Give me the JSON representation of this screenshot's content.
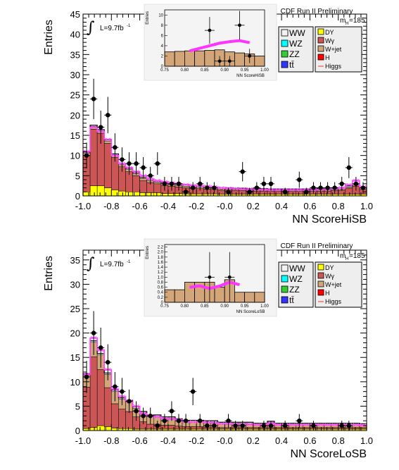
{
  "chart_data": [
    {
      "type": "bar",
      "xlabel": "NN ScoreHiSB",
      "ylabel": "Entries",
      "xlim": [
        -1.0,
        1.0
      ],
      "ylim": [
        0,
        45
      ],
      "xticks": [
        "-1.0",
        "-0.8",
        "-0.6",
        "-0.4",
        "-0.2",
        "-0.0",
        "0.2",
        "0.4",
        "0.6",
        "0.8",
        "1.0"
      ],
      "yticks": [
        "0",
        "5",
        "10",
        "15",
        "20",
        "25",
        "30",
        "35",
        "40",
        "45"
      ],
      "header": "CDF Run II Preliminary",
      "mass_label": "m",
      "mass_sub": "H",
      "mass_value": "=185",
      "lumi_label": "L=9.7fb",
      "lumi_sup": "-1",
      "integral_symbol": "∫",
      "legend": [
        {
          "name": "WW",
          "color": "#f2f2f2"
        },
        {
          "name": "WZ",
          "color": "#00ffff"
        },
        {
          "name": "ZZ",
          "color": "#33cc33"
        },
        {
          "name": "tt̄",
          "color": "#3333ff"
        },
        {
          "name": "DY",
          "color": "#ffff00"
        },
        {
          "name": "Wγ",
          "color": "#cc5555"
        },
        {
          "name": "W+jet",
          "color": "#d2a679"
        },
        {
          "name": "H",
          "color": "#ff0000"
        },
        {
          "name": "Higgs",
          "color": "#ff3333",
          "line": true
        }
      ],
      "bins": 40,
      "series": [
        {
          "name": "DY",
          "values": [
            1.0,
            2.5,
            2.5,
            2.0,
            1.5,
            1.2,
            1.0,
            1.0,
            0.8,
            0.8,
            0.8,
            0.6,
            0.6,
            0.6,
            0.5,
            0.5,
            0.5,
            0.5,
            0.5,
            0.4,
            0.4,
            0.4,
            0.4,
            0.4,
            0.4,
            0.4,
            0.4,
            0.4,
            0.4,
            0.4,
            0.4,
            0.4,
            0.4,
            0.4,
            0.4,
            0.4,
            0.4,
            0.4,
            0.4,
            0.4
          ]
        },
        {
          "name": "Wγ",
          "values": [
            9.0,
            14.0,
            13.0,
            11.0,
            8.0,
            6.0,
            5.0,
            4.0,
            3.0,
            2.5,
            2.2,
            2.0,
            1.8,
            1.6,
            1.5,
            1.4,
            1.3,
            1.2,
            1.1,
            1.0,
            1.0,
            0.9,
            0.9,
            0.8,
            0.8,
            0.8,
            0.7,
            0.7,
            0.7,
            0.7,
            0.7,
            0.7,
            0.7,
            0.8,
            0.8,
            0.9,
            1.0,
            1.5,
            2.0,
            1.2
          ]
        },
        {
          "name": "W+jet",
          "values": [
            0.5,
            0.7,
            0.6,
            0.6,
            0.6,
            0.5,
            0.5,
            0.5,
            0.5,
            0.5,
            0.4,
            0.4,
            0.4,
            0.4,
            0.4,
            0.4,
            0.4,
            0.4,
            0.3,
            0.3,
            0.3,
            0.3,
            0.3,
            0.3,
            0.3,
            0.3,
            0.3,
            0.3,
            0.3,
            0.3,
            0.3,
            0.3,
            0.3,
            0.3,
            0.3,
            0.3,
            0.3,
            0.3,
            0.3,
            0.3
          ]
        },
        {
          "name": "WW",
          "values": [
            0.3,
            0.3,
            0.3,
            0.3,
            0.3,
            0.3,
            0.3,
            0.3,
            0.3,
            0.3,
            0.3,
            0.3,
            0.3,
            0.3,
            0.3,
            0.3,
            0.3,
            0.3,
            0.3,
            0.3,
            0.3,
            0.3,
            0.3,
            0.3,
            0.3,
            0.3,
            0.3,
            0.3,
            0.3,
            0.3,
            0.3,
            0.3,
            0.3,
            0.3,
            0.3,
            0.3,
            0.3,
            0.3,
            0.3,
            0.3
          ]
        }
      ],
      "higgs": [
        11.0,
        17.0,
        16.0,
        14.0,
        10.0,
        8.0,
        7.0,
        6.0,
        5.0,
        4.2,
        3.8,
        3.5,
        3.2,
        3.0,
        2.8,
        2.6,
        2.5,
        2.4,
        2.2,
        2.0,
        1.9,
        1.8,
        1.7,
        1.7,
        1.6,
        1.6,
        1.5,
        1.5,
        1.5,
        1.5,
        1.5,
        1.5,
        1.5,
        1.6,
        1.7,
        1.8,
        2.0,
        2.8,
        3.8,
        2.2
      ],
      "data_points": [
        {
          "x": -0.975,
          "y": 10,
          "err": 3.2
        },
        {
          "x": -0.925,
          "y": 24,
          "err": 5
        },
        {
          "x": -0.875,
          "y": 17,
          "err": 4.1
        },
        {
          "x": -0.825,
          "y": 20,
          "err": 4.5
        },
        {
          "x": -0.775,
          "y": 12,
          "err": 3.5
        },
        {
          "x": -0.725,
          "y": 9,
          "err": 3
        },
        {
          "x": -0.675,
          "y": 8,
          "err": 2.8
        },
        {
          "x": -0.625,
          "y": 8,
          "err": 2.8
        },
        {
          "x": -0.575,
          "y": 7,
          "err": 2.6
        },
        {
          "x": -0.525,
          "y": 5,
          "err": 2.2
        },
        {
          "x": -0.475,
          "y": 8,
          "err": 2.8
        },
        {
          "x": -0.425,
          "y": 3,
          "err": 1.7
        },
        {
          "x": -0.375,
          "y": 3,
          "err": 1.7
        },
        {
          "x": -0.325,
          "y": 3,
          "err": 1.7
        },
        {
          "x": -0.275,
          "y": 1,
          "err": 1
        },
        {
          "x": -0.225,
          "y": 2,
          "err": 1.4
        },
        {
          "x": -0.175,
          "y": 3,
          "err": 1.7
        },
        {
          "x": -0.125,
          "y": 2,
          "err": 1.4
        },
        {
          "x": -0.075,
          "y": 2,
          "err": 1.4
        },
        {
          "x": 0.025,
          "y": 1,
          "err": 1
        },
        {
          "x": 0.125,
          "y": 6,
          "err": 2.4
        },
        {
          "x": 0.175,
          "y": 1,
          "err": 1
        },
        {
          "x": 0.225,
          "y": 2,
          "err": 1.4
        },
        {
          "x": 0.275,
          "y": 3,
          "err": 1.7
        },
        {
          "x": 0.325,
          "y": 3,
          "err": 1.7
        },
        {
          "x": 0.425,
          "y": 1,
          "err": 1
        },
        {
          "x": 0.525,
          "y": 4,
          "err": 2
        },
        {
          "x": 0.575,
          "y": 1,
          "err": 1
        },
        {
          "x": 0.625,
          "y": 2,
          "err": 1.4
        },
        {
          "x": 0.675,
          "y": 2,
          "err": 1.4
        },
        {
          "x": 0.725,
          "y": 2,
          "err": 1.4
        },
        {
          "x": 0.775,
          "y": 2,
          "err": 1.4
        },
        {
          "x": 0.825,
          "y": 3,
          "err": 1.7
        },
        {
          "x": 0.875,
          "y": 7,
          "err": 2.6
        },
        {
          "x": 0.925,
          "y": 3,
          "err": 1.7
        },
        {
          "x": 0.975,
          "y": 2,
          "err": 1.4
        }
      ],
      "inset": {
        "xlabel": "NN ScoreHiSB",
        "ylabel": "Entries",
        "xlim": [
          0.75,
          1.0
        ],
        "ylim": [
          0,
          11
        ],
        "xticks": [
          "0.75",
          "0.80",
          "0.85",
          "0.90",
          "0.95",
          "1.00"
        ],
        "yticks": [
          "0",
          "2",
          "4",
          "6",
          "8",
          "10"
        ],
        "bkg": [
          2.8,
          2.9,
          3.0,
          3.0,
          3.1,
          3.2,
          2.8,
          2.6,
          2.4,
          2.0
        ],
        "higgs": [
          null,
          null,
          3.0,
          3.5,
          4.0,
          4.5,
          4.8,
          5.0,
          4.6,
          null
        ],
        "data_points": [
          {
            "x": 0.8625,
            "y": 7,
            "err": 2.6
          },
          {
            "x": 0.8875,
            "y": 1,
            "err": 1
          },
          {
            "x": 0.9125,
            "y": 1,
            "err": 1
          },
          {
            "x": 0.9375,
            "y": 8,
            "err": 2.8
          },
          {
            "x": 0.9625,
            "y": 2,
            "err": 1.4
          }
        ]
      }
    },
    {
      "type": "bar",
      "xlabel": "NN ScoreLoSB",
      "ylabel": "Entries",
      "xlim": [
        -1.0,
        1.0
      ],
      "ylim": [
        0,
        37
      ],
      "xticks": [
        "-1.0",
        "-0.8",
        "-0.6",
        "-0.4",
        "-0.2",
        "-0.0",
        "0.2",
        "0.4",
        "0.6",
        "0.8",
        "1.0"
      ],
      "yticks": [
        "0",
        "5",
        "10",
        "15",
        "20",
        "25",
        "30",
        "35"
      ],
      "header": "CDF Run II Preliminary",
      "mass_label": "m",
      "mass_sub": "H",
      "mass_value": "=185",
      "lumi_label": "L=9.7fb",
      "lumi_sup": "-1",
      "integral_symbol": "∫",
      "legend": [
        {
          "name": "WW",
          "color": "#f2f2f2"
        },
        {
          "name": "WZ",
          "color": "#00ffff"
        },
        {
          "name": "ZZ",
          "color": "#33cc33"
        },
        {
          "name": "tt̄",
          "color": "#3333ff"
        },
        {
          "name": "DY",
          "color": "#ffff00"
        },
        {
          "name": "Wγ",
          "color": "#cc5555"
        },
        {
          "name": "W+jet",
          "color": "#d2a679"
        },
        {
          "name": "H",
          "color": "#ff0000"
        },
        {
          "name": "Higgs",
          "color": "#ff3333",
          "line": true
        }
      ],
      "bins": 40,
      "series": [
        {
          "name": "DY",
          "values": [
            0.4,
            0.6,
            1.0,
            0.8,
            0.5,
            0.4,
            0.4,
            0.3,
            0.3,
            0.3,
            0.3,
            0.3,
            0.3,
            0.3,
            0.3,
            0.3,
            0.3,
            0.3,
            0.3,
            0.3,
            0.3,
            0.3,
            0.3,
            0.3,
            0.3,
            0.3,
            0.3,
            0.3,
            0.3,
            0.3,
            0.3,
            0.3,
            0.3,
            0.3,
            0.3,
            0.3,
            0.3,
            0.3,
            0.3,
            0.3
          ]
        },
        {
          "name": "Wγ",
          "values": [
            8.5,
            14.5,
            11.5,
            8.0,
            5.0,
            4.0,
            3.5,
            2.5,
            1.5,
            1.0,
            1.0,
            0.8,
            0.8,
            0.6,
            0.5,
            0.5,
            0.5,
            0.4,
            0.4,
            0.3,
            0.3,
            0.3,
            0.3,
            0.3,
            0.3,
            0.3,
            0.3,
            0.3,
            0.3,
            0.3,
            0.3,
            0.3,
            0.3,
            0.3,
            0.3,
            0.3,
            0.3,
            0.3,
            0.3,
            0.3
          ]
        },
        {
          "name": "W+jet",
          "values": [
            2.5,
            3.0,
            3.0,
            2.7,
            2.5,
            2.0,
            2.0,
            1.8,
            1.8,
            1.6,
            1.6,
            1.4,
            1.4,
            1.2,
            1.0,
            1.0,
            1.0,
            1.0,
            1.0,
            0.8,
            0.8,
            0.8,
            0.8,
            0.8,
            0.6,
            0.6,
            1.0,
            0.6,
            0.6,
            0.6,
            0.6,
            0.6,
            0.6,
            0.6,
            0.6,
            0.6,
            0.6,
            0.6,
            0.6,
            0.5
          ]
        },
        {
          "name": "WW",
          "values": [
            0.3,
            0.3,
            0.3,
            0.3,
            0.3,
            0.3,
            0.3,
            0.3,
            0.3,
            0.3,
            0.3,
            0.3,
            0.3,
            0.3,
            0.3,
            0.3,
            0.3,
            0.3,
            0.3,
            0.3,
            0.3,
            0.3,
            0.3,
            0.3,
            0.3,
            0.3,
            0.3,
            0.3,
            0.3,
            0.3,
            0.3,
            0.3,
            0.3,
            0.3,
            0.3,
            0.3,
            0.3,
            0.3,
            0.3,
            0.3
          ]
        }
      ],
      "higgs": [
        11.5,
        19.0,
        16.5,
        12.5,
        8.5,
        7.0,
        6.0,
        5.0,
        3.5,
        3.0,
        2.8,
        2.5,
        2.4,
        2.2,
        1.8,
        1.8,
        1.8,
        1.7,
        1.6,
        1.4,
        1.4,
        1.3,
        1.3,
        1.3,
        1.2,
        1.2,
        1.5,
        1.2,
        1.2,
        1.2,
        1.2,
        1.2,
        1.2,
        1.2,
        1.2,
        1.2,
        1.2,
        1.2,
        1.2,
        1.1
      ],
      "data_points": [
        {
          "x": -0.975,
          "y": 11,
          "err": 3.3
        },
        {
          "x": -0.925,
          "y": 20,
          "err": 4.5
        },
        {
          "x": -0.875,
          "y": 17,
          "err": 4.1
        },
        {
          "x": -0.825,
          "y": 14,
          "err": 3.7
        },
        {
          "x": -0.775,
          "y": 9,
          "err": 3
        },
        {
          "x": -0.725,
          "y": 8,
          "err": 2.8
        },
        {
          "x": -0.675,
          "y": 6,
          "err": 2.4
        },
        {
          "x": -0.625,
          "y": 4,
          "err": 2
        },
        {
          "x": -0.575,
          "y": 3,
          "err": 1.7
        },
        {
          "x": -0.525,
          "y": 3,
          "err": 1.7
        },
        {
          "x": -0.475,
          "y": 1,
          "err": 1
        },
        {
          "x": -0.425,
          "y": 2,
          "err": 1.4
        },
        {
          "x": -0.375,
          "y": 4,
          "err": 2
        },
        {
          "x": -0.325,
          "y": 2,
          "err": 1.4
        },
        {
          "x": -0.275,
          "y": 2,
          "err": 1.4
        },
        {
          "x": -0.225,
          "y": 8,
          "err": 2.8
        },
        {
          "x": -0.175,
          "y": 2,
          "err": 1.4
        },
        {
          "x": -0.125,
          "y": 1,
          "err": 1
        },
        {
          "x": -0.075,
          "y": 1,
          "err": 1
        },
        {
          "x": 0.025,
          "y": 2,
          "err": 1.4
        },
        {
          "x": 0.075,
          "y": 1,
          "err": 1
        },
        {
          "x": 0.125,
          "y": 1,
          "err": 1
        },
        {
          "x": 0.275,
          "y": 1,
          "err": 1
        },
        {
          "x": 0.325,
          "y": 1,
          "err": 1
        },
        {
          "x": 0.425,
          "y": 1,
          "err": 1
        },
        {
          "x": 0.525,
          "y": 2,
          "err": 1.4
        },
        {
          "x": 0.625,
          "y": 1,
          "err": 1
        },
        {
          "x": 0.825,
          "y": 1,
          "err": 1
        },
        {
          "x": 0.875,
          "y": 1,
          "err": 1
        }
      ],
      "inset": {
        "xlabel": "NN ScoreLoSB",
        "ylabel": "Entries",
        "xlim": [
          0.75,
          1.0
        ],
        "ylim": [
          0,
          2.3
        ],
        "xticks": [
          "0.75",
          "0.80",
          "0.85",
          "0.90",
          "0.95",
          "1.00"
        ],
        "yticks": [
          "0",
          "0.2",
          "0.4",
          "0.6",
          "0.8",
          "1.0",
          "1.2",
          "1.4",
          "1.6",
          "1.8",
          "2.0",
          "2.2"
        ],
        "bkg": [
          0.5,
          0.5,
          0.8,
          0.8,
          0.8,
          0.6,
          0.9,
          0.4,
          0.4,
          0.4
        ],
        "higgs": [
          null,
          null,
          0.6,
          0.65,
          0.55,
          0.65,
          0.8,
          0.7,
          null,
          null
        ],
        "data_points": [
          {
            "x": 0.8625,
            "y": 1,
            "err": 1
          },
          {
            "x": 0.9125,
            "y": 1,
            "err": 1
          }
        ]
      }
    }
  ]
}
